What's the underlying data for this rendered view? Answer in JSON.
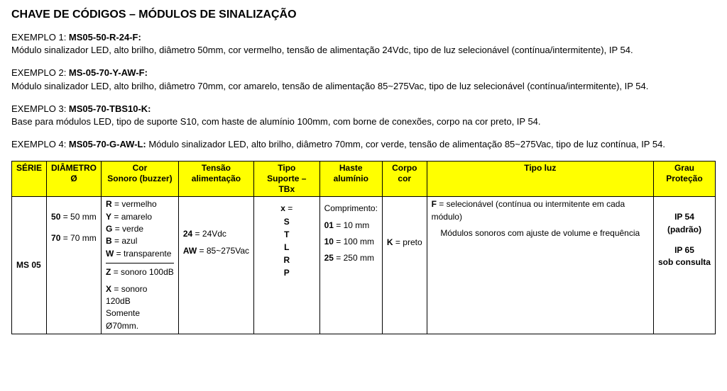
{
  "title": "CHAVE DE CÓDIGOS – MÓDULOS DE SINALIZAÇÃO",
  "examples": [
    {
      "label": "EXEMPLO 1: ",
      "code": "MS05-50-R-24-F:",
      "desc": "Módulo sinalizador LED, alto brilho, diâmetro 50mm, cor vermelho, tensão de alimentação 24Vdc, tipo de luz selecionável (contínua/intermitente), IP 54."
    },
    {
      "label": "EXEMPLO 2: ",
      "code": "MS-05-70-Y-AW-F:",
      "desc": "Módulo sinalizador LED, alto brilho, diâmetro 70mm, cor amarelo, tensão de alimentação 85~275Vac, tipo de luz selecionável (contínua/intermitente), IP 54."
    },
    {
      "label": "EXEMPLO 3: ",
      "code": "MS05-70-TBS10-K:",
      "desc": "Base para módulos LED, tipo de suporte S10, com haste de alumínio 100mm, com borne de conexões, corpo na cor preto, IP 54."
    },
    {
      "label": "EXEMPLO 4: ",
      "code": "MS05-70-G-AW-L: ",
      "desc": "Módulo sinalizador LED, alto brilho, diâmetro 70mm, cor verde, tensão de alimentação 85~275Vac, tipo de luz contínua, IP 54."
    }
  ],
  "table": {
    "header_bg": "#ffff00",
    "columns": [
      {
        "l1": "SÉRIE",
        "l2": ""
      },
      {
        "l1": "DIÂMETRO",
        "l2": "Ø"
      },
      {
        "l1": "Cor",
        "l2": "Sonoro (buzzer)"
      },
      {
        "l1": "Tensão",
        "l2": "alimentação"
      },
      {
        "l1": "Tipo",
        "l2": "Suporte – TBx"
      },
      {
        "l1": "Haste",
        "l2": "alumínio"
      },
      {
        "l1": "Corpo",
        "l2": "cor"
      },
      {
        "l1": "Tipo luz",
        "l2": ""
      },
      {
        "l1": "Grau",
        "l2": "Proteção"
      }
    ],
    "row": {
      "serie": "MS 05",
      "diam_50_b": "50",
      "diam_50_r": " = 50 mm",
      "diam_70_b": "70",
      "diam_70_r": " = 70 mm",
      "cor_R_b": "R",
      "cor_R_r": " = vermelho",
      "cor_Y_b": "Y",
      "cor_Y_r": " = amarelo",
      "cor_G_b": "G",
      "cor_G_r": " = verde",
      "cor_B_b": "B",
      "cor_B_r": " = azul",
      "cor_W_b": "W",
      "cor_W_r": " = transparente",
      "cor_Z_b": "Z",
      "cor_Z_r": " = sonoro 100dB",
      "cor_X_b": "X",
      "cor_X_r": " = sonoro 120dB",
      "cor_X_note": "Somente Ø70mm.",
      "tensao_24_b": "24",
      "tensao_24_r": " = 24Vdc",
      "tensao_AW_b": "AW",
      "tensao_AW_r": " = 85~275Vac",
      "tipo_x_b": "x",
      "tipo_x_r": " =",
      "tipo_letters": "S\nT\nL\nR\nP",
      "haste_title": "Comprimento:",
      "haste_01_b": "01",
      "haste_01_r": " = 10 mm",
      "haste_10_b": "10",
      "haste_10_r": " = 100 mm",
      "haste_25_b": "25",
      "haste_25_r": " = 250 mm",
      "corpo_K_b": "K",
      "corpo_K_r": " = preto",
      "luz_F_b": "F",
      "luz_F_r": " = selecionável (contínua ou intermitente em cada módulo)",
      "luz_note": "Módulos sonoros com ajuste de volume e frequência",
      "grau_ip54_b": "IP 54",
      "grau_ip54_r": "(padrão)",
      "grau_ip65_b": "IP 65",
      "grau_ip65_r": "sob consulta"
    }
  }
}
